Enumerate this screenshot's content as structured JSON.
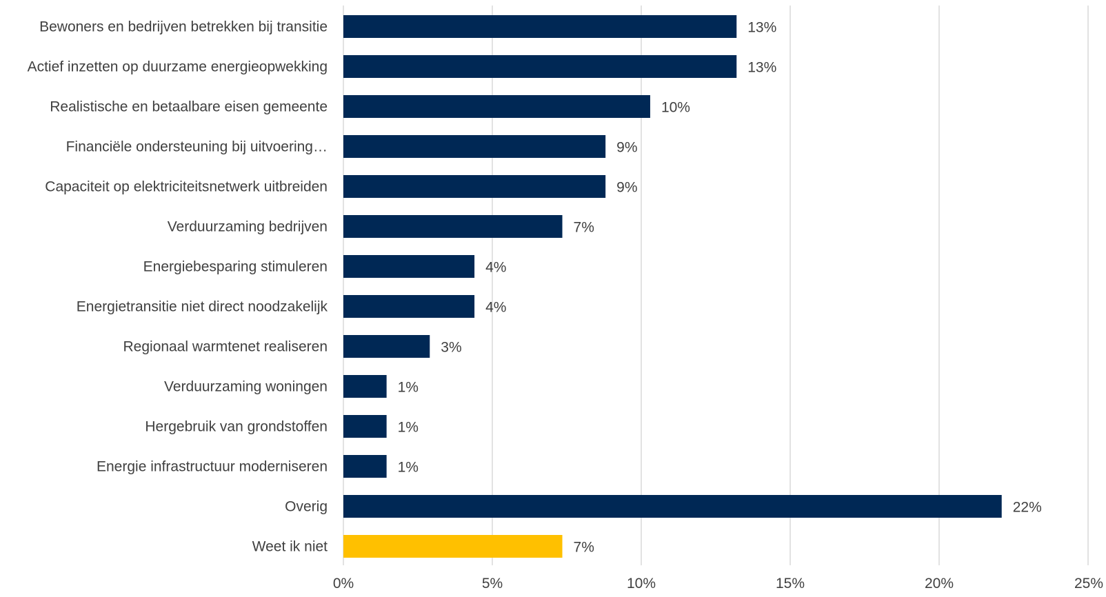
{
  "chart_data": {
    "type": "bar",
    "orientation": "horizontal",
    "title": "",
    "xlabel": "",
    "ylabel": "",
    "categories": [
      "Bewoners en bedrijven betrekken bij transitie",
      "Actief inzetten op duurzame energieopwekking",
      "Realistische en betaalbare eisen gemeente",
      "Financiële ondersteuning bij uitvoering…",
      "Capaciteit op elektriciteitsnetwerk uitbreiden",
      "Verduurzaming bedrijven",
      "Energiebesparing stimuleren",
      "Energietransitie niet direct noodzakelijk",
      "Regionaal warmtenet realiseren",
      "Verduurzaming woningen",
      "Hergebruik van grondstoffen",
      "Energie infrastructuur moderniseren",
      "Overig",
      "Weet ik niet"
    ],
    "values": [
      13.2,
      13.2,
      10.3,
      8.8,
      8.8,
      7.35,
      4.4,
      4.4,
      2.9,
      1.45,
      1.45,
      1.45,
      22.1,
      7.35
    ],
    "value_labels": [
      "13%",
      "13%",
      "10%",
      "9%",
      "9%",
      "7%",
      "4%",
      "4%",
      "3%",
      "1%",
      "1%",
      "1%",
      "22%",
      "7%"
    ],
    "bar_colors": [
      "#002855",
      "#002855",
      "#002855",
      "#002855",
      "#002855",
      "#002855",
      "#002855",
      "#002855",
      "#002855",
      "#002855",
      "#002855",
      "#002855",
      "#002855",
      "#FFC000"
    ],
    "xlim": [
      0,
      25
    ],
    "xticks": [
      0,
      5,
      10,
      15,
      20,
      25
    ],
    "xtick_labels": [
      "0%",
      "5%",
      "10%",
      "15%",
      "20%",
      "25%"
    ],
    "grid": true,
    "legend": "none"
  }
}
